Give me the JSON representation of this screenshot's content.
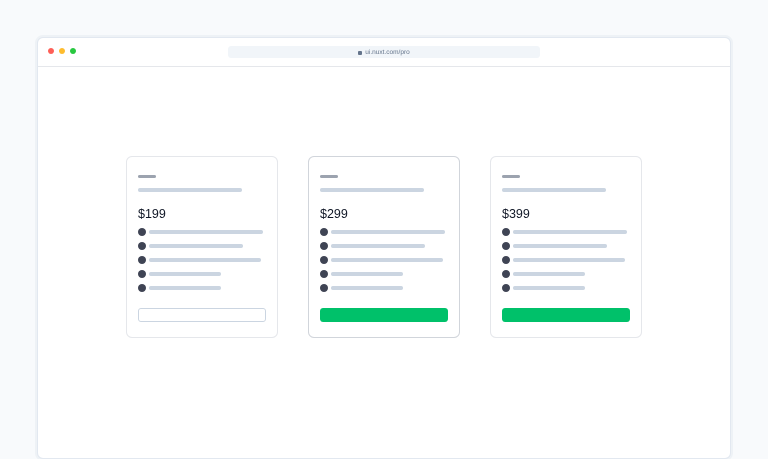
{
  "browser": {
    "url": "ui.nuxt.com/pro",
    "dots": [
      "#fe5f57",
      "#febc2e",
      "#28c840"
    ]
  },
  "cards": [
    {
      "price": "$199",
      "button_style": "outline",
      "highlighted": false
    },
    {
      "price": "$299",
      "button_style": "solid",
      "highlighted": true
    },
    {
      "price": "$399",
      "button_style": "solid",
      "highlighted": false
    }
  ],
  "colors": {
    "primary": "#00c16a",
    "bullet": "#3f4454",
    "placeholder": "#cbd5e1"
  }
}
